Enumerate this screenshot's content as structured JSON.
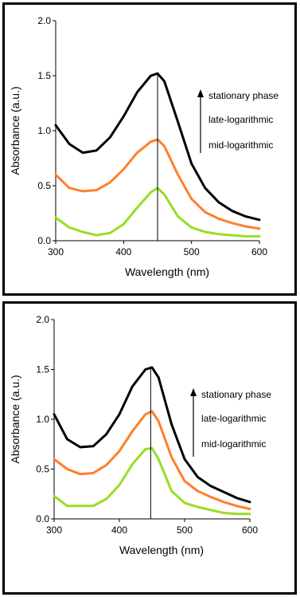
{
  "chart_data": [
    {
      "type": "line",
      "xlabel": "Wavelength (nm)",
      "ylabel": "Absorbance (a.u.)",
      "xlim": [
        300,
        600
      ],
      "ylim": [
        0,
        2.0
      ],
      "xticks": [
        "300",
        "400",
        "500",
        "600"
      ],
      "yticks": [
        "0.0",
        "0.5",
        "1.0",
        "1.5",
        "2.0"
      ],
      "vline_x": 450,
      "legend": [
        "stationary phase",
        "late-logarithmic",
        "mid-logarithmic"
      ],
      "grid": false,
      "series": [
        {
          "name": "stationary phase",
          "color": "#000000",
          "x": [
            300,
            320,
            340,
            360,
            380,
            400,
            420,
            440,
            450,
            460,
            480,
            500,
            520,
            540,
            560,
            580,
            600
          ],
          "y": [
            1.05,
            0.88,
            0.8,
            0.82,
            0.94,
            1.13,
            1.35,
            1.5,
            1.52,
            1.45,
            1.08,
            0.7,
            0.48,
            0.35,
            0.27,
            0.22,
            0.19
          ]
        },
        {
          "name": "late-logarithmic",
          "color": "#ff7f2a",
          "x": [
            300,
            320,
            340,
            360,
            380,
            400,
            420,
            440,
            450,
            460,
            480,
            500,
            520,
            540,
            560,
            580,
            600
          ],
          "y": [
            0.6,
            0.48,
            0.45,
            0.46,
            0.53,
            0.65,
            0.8,
            0.9,
            0.92,
            0.86,
            0.6,
            0.38,
            0.26,
            0.2,
            0.16,
            0.13,
            0.11
          ]
        },
        {
          "name": "mid-logarithmic",
          "color": "#99dd22",
          "x": [
            300,
            320,
            340,
            360,
            380,
            400,
            420,
            440,
            450,
            460,
            480,
            500,
            520,
            540,
            560,
            580,
            600
          ],
          "y": [
            0.21,
            0.12,
            0.08,
            0.05,
            0.07,
            0.15,
            0.3,
            0.44,
            0.48,
            0.42,
            0.22,
            0.12,
            0.08,
            0.06,
            0.05,
            0.04,
            0.04
          ]
        }
      ]
    },
    {
      "type": "line",
      "xlabel": "Wavelength (nm)",
      "ylabel": "Absorbance (a.u.)",
      "xlim": [
        300,
        600
      ],
      "ylim": [
        0,
        2.0
      ],
      "xticks": [
        "300",
        "400",
        "500",
        "600"
      ],
      "yticks": [
        "0.0",
        "0.5",
        "1.0",
        "1.5",
        "2.0"
      ],
      "vline_x": 448,
      "legend": [
        "stationary phase",
        "late-logarithmic",
        "mid-logarithmic"
      ],
      "grid": false,
      "series": [
        {
          "name": "stationary phase",
          "color": "#000000",
          "x": [
            300,
            320,
            340,
            360,
            380,
            400,
            420,
            440,
            450,
            460,
            480,
            500,
            520,
            540,
            560,
            580,
            600
          ],
          "y": [
            1.05,
            0.8,
            0.72,
            0.73,
            0.85,
            1.05,
            1.33,
            1.5,
            1.52,
            1.42,
            0.95,
            0.6,
            0.42,
            0.33,
            0.27,
            0.21,
            0.17
          ]
        },
        {
          "name": "late-logarithmic",
          "color": "#ff7f2a",
          "x": [
            300,
            320,
            340,
            360,
            380,
            400,
            420,
            440,
            450,
            460,
            480,
            500,
            520,
            540,
            560,
            580,
            600
          ],
          "y": [
            0.6,
            0.5,
            0.45,
            0.46,
            0.54,
            0.68,
            0.88,
            1.05,
            1.08,
            0.98,
            0.62,
            0.38,
            0.28,
            0.22,
            0.17,
            0.13,
            0.1
          ]
        },
        {
          "name": "mid-logarithmic",
          "color": "#99dd22",
          "x": [
            300,
            320,
            340,
            360,
            380,
            400,
            420,
            440,
            450,
            460,
            480,
            500,
            520,
            540,
            560,
            580,
            600
          ],
          "y": [
            0.23,
            0.13,
            0.13,
            0.13,
            0.2,
            0.34,
            0.55,
            0.7,
            0.71,
            0.6,
            0.28,
            0.16,
            0.12,
            0.09,
            0.06,
            0.05,
            0.05
          ]
        }
      ]
    }
  ]
}
